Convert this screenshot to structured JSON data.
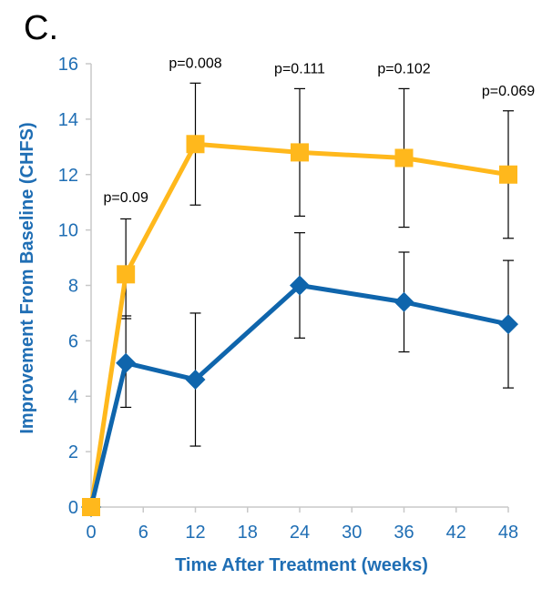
{
  "panel_label": "C.",
  "colors": {
    "axis_text": "#1f6eb4",
    "series_a": "#ffb81c",
    "series_b": "#0f65ac",
    "error_bar": "#000000",
    "axis_line": "#c8c8c8"
  },
  "chart_data": {
    "type": "line",
    "title": "",
    "xlabel": "Time After Treatment (weeks)",
    "ylabel": "Improvement From Baseline (CHFS)",
    "xlim": [
      0,
      48
    ],
    "ylim": [
      0,
      16
    ],
    "xticks": [
      0,
      6,
      12,
      18,
      24,
      30,
      36,
      42,
      48
    ],
    "yticks": [
      0,
      2,
      4,
      6,
      8,
      10,
      12,
      14,
      16
    ],
    "grid": false,
    "legend": "none",
    "series": [
      {
        "marker": "square",
        "color": "#ffb81c",
        "x": [
          0,
          4,
          12,
          24,
          36,
          48
        ],
        "y": [
          0,
          8.4,
          13.1,
          12.8,
          12.6,
          12.0
        ],
        "err_low": [
          null,
          6.8,
          10.9,
          10.5,
          10.1,
          9.7
        ],
        "err_high": [
          null,
          10.4,
          15.3,
          15.1,
          15.1,
          14.3
        ]
      },
      {
        "marker": "diamond",
        "color": "#0f65ac",
        "x": [
          0,
          4,
          12,
          24,
          36,
          48
        ],
        "y": [
          0,
          5.2,
          4.6,
          8.0,
          7.4,
          6.6
        ],
        "err_low": [
          null,
          3.6,
          2.2,
          6.1,
          5.6,
          4.3
        ],
        "err_high": [
          null,
          6.9,
          7.0,
          9.9,
          9.2,
          8.9
        ]
      }
    ],
    "annotations": [
      {
        "x": 4,
        "y": 11.0,
        "text": "p=0.09"
      },
      {
        "x": 12,
        "y": 15.85,
        "text": "p=0.008"
      },
      {
        "x": 24,
        "y": 15.65,
        "text": "p=0.111"
      },
      {
        "x": 36,
        "y": 15.65,
        "text": "p=0.102"
      },
      {
        "x": 48,
        "y": 14.85,
        "text": "p=0.069"
      }
    ]
  }
}
